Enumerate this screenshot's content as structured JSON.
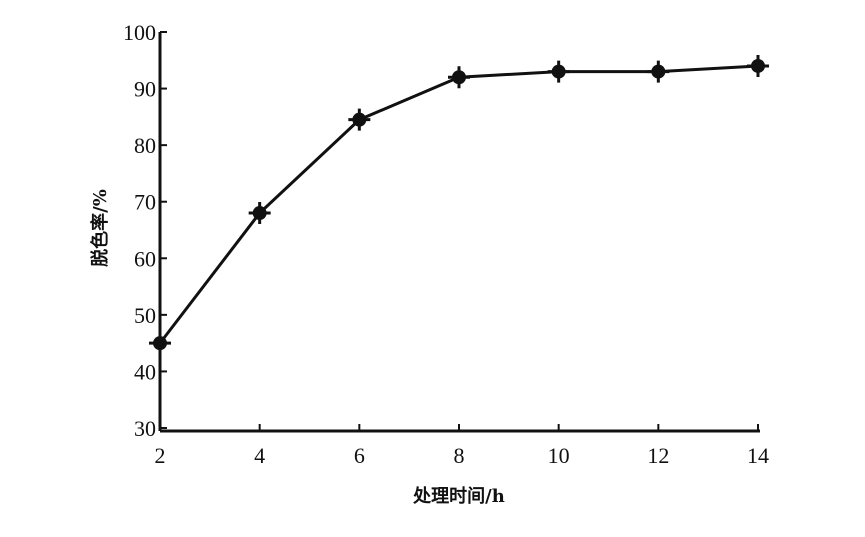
{
  "chart_data": {
    "type": "line",
    "title": "",
    "xlabel": "处理时间/h",
    "ylabel": "脱色率/%",
    "x": [
      2,
      4,
      6,
      8,
      10,
      12,
      14
    ],
    "xticks": [
      "2",
      "4",
      "6",
      "8",
      "10",
      "12",
      "14"
    ],
    "yticks": [
      "30",
      "40",
      "50",
      "60",
      "70",
      "80",
      "90",
      "100"
    ],
    "xlim": [
      2,
      14
    ],
    "ylim": [
      30,
      100
    ],
    "grid": false,
    "series": [
      {
        "values": [
          45,
          68,
          84.5,
          92,
          93,
          93,
          94
        ],
        "color": "#111111",
        "marker": "star"
      }
    ]
  }
}
